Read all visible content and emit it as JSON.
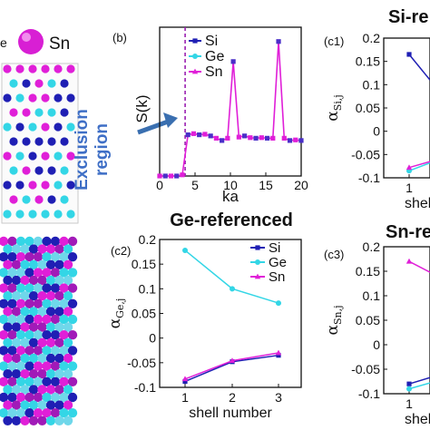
{
  "legend_labels": {
    "top_left_atom": "Sn"
  },
  "exclusion_label": [
    "Exclusion",
    "region"
  ],
  "headings": {
    "si": "Si-re",
    "ge": "Ge-referenced",
    "sn": "Sn-re"
  },
  "colors": {
    "si": "#1f1fb4",
    "ge": "#33d6e6",
    "sn": "#e01fd8",
    "arrow": "#3a6fb0",
    "exclusion_text": "#3f6fc6"
  },
  "chart_data": [
    {
      "panel": "(b)",
      "type": "line",
      "xlabel": "ka",
      "ylabel": "S(k)",
      "xlim": [
        0,
        20
      ],
      "ylim": [
        0,
        2.6
      ],
      "xticks": [
        "0",
        "5",
        "10",
        "15",
        "20"
      ],
      "vline_x": 3.6,
      "legend": [
        "Si",
        "Ge",
        "Sn"
      ],
      "x": [
        0,
        0.8,
        1.6,
        2.4,
        3.2,
        4,
        4.8,
        5.6,
        6.4,
        7.2,
        8,
        8.8,
        9.6,
        10.4,
        11.2,
        12,
        12.8,
        13.6,
        14.4,
        15.2,
        16,
        16.8,
        17.6,
        18.4,
        19.2,
        20
      ],
      "series": [
        {
          "name": "Sn",
          "values": [
            0,
            0,
            0,
            0,
            0.02,
            0.72,
            0.74,
            0.72,
            0.73,
            0.7,
            0.66,
            0.62,
            0.66,
            2.0,
            0.68,
            0.7,
            0.67,
            0.66,
            0.67,
            0.66,
            0.66,
            2.35,
            0.66,
            0.62,
            0.63,
            0.62
          ]
        }
      ]
    },
    {
      "panel": "(c1)",
      "type": "line",
      "ylabel_main": "α",
      "ylabel_sub": "Si,j",
      "xlabel": "shel",
      "ylim": [
        -0.1,
        0.2
      ],
      "yticks": [
        "0.2",
        "0.15",
        "0.1",
        "0.05",
        "0",
        "-0.05",
        "-0.1"
      ],
      "categories": [
        "1"
      ],
      "series": [
        {
          "name": "Si",
          "values": [
            0.165
          ]
        },
        {
          "name": "Ge",
          "values": [
            -0.085
          ]
        },
        {
          "name": "Sn",
          "values": [
            -0.078
          ]
        }
      ]
    },
    {
      "panel": "(c2)",
      "type": "line",
      "ylabel_main": "α",
      "ylabel_sub": "Ge,j",
      "xlabel": "shell number",
      "ylim": [
        -0.1,
        0.2
      ],
      "yticks": [
        "0.2",
        "0.15",
        "0.1",
        "0.05",
        "0",
        "-0.05",
        "-0.1"
      ],
      "categories": [
        "1",
        "2",
        "3"
      ],
      "legend": [
        "Si",
        "Ge",
        "Sn"
      ],
      "series": [
        {
          "name": "Si",
          "values": [
            -0.088,
            -0.048,
            -0.035
          ]
        },
        {
          "name": "Ge",
          "values": [
            0.178,
            0.1,
            0.071
          ]
        },
        {
          "name": "Sn",
          "values": [
            -0.083,
            -0.046,
            -0.03
          ]
        }
      ]
    },
    {
      "panel": "(c3)",
      "type": "line",
      "ylabel_main": "α",
      "ylabel_sub": "Sn,j",
      "xlabel": "shel",
      "ylim": [
        -0.1,
        0.2
      ],
      "yticks": [
        "0.2",
        "0.15",
        "0.1",
        "0.05",
        "0",
        "-0.05",
        "-0.1"
      ],
      "categories": [
        "1"
      ],
      "series": [
        {
          "name": "Sn",
          "values": [
            0.17
          ]
        },
        {
          "name": "Si",
          "values": [
            -0.08
          ]
        },
        {
          "name": "Ge",
          "values": [
            -0.09
          ]
        }
      ]
    }
  ]
}
